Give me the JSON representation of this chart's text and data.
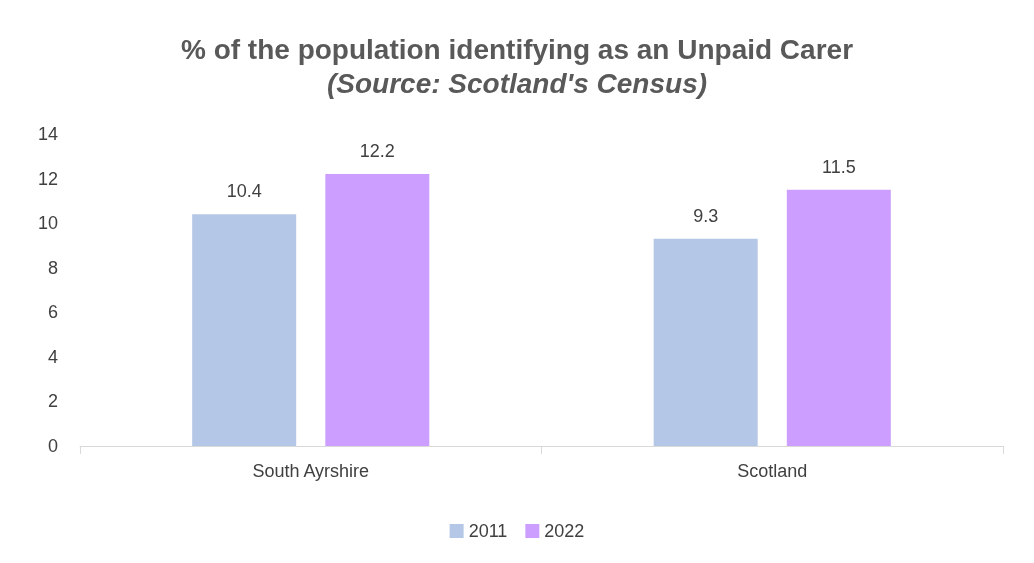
{
  "chart_data": {
    "type": "bar",
    "title": "% of the population identifying as an Unpaid Carer",
    "subtitle": "(Source: Scotland's Census)",
    "categories": [
      "South Ayrshire",
      "Scotland"
    ],
    "series": [
      {
        "name": "2011",
        "color": "#b4c7e7",
        "values": [
          10.4,
          9.3
        ]
      },
      {
        "name": "2022",
        "color": "#cc9eff",
        "values": [
          12.2,
          11.5
        ]
      }
    ],
    "ylim": [
      0,
      14
    ],
    "yticks": [
      0,
      2,
      4,
      6,
      8,
      10,
      12,
      14
    ],
    "grid": false,
    "legend": "bottom",
    "data_labels": true
  }
}
